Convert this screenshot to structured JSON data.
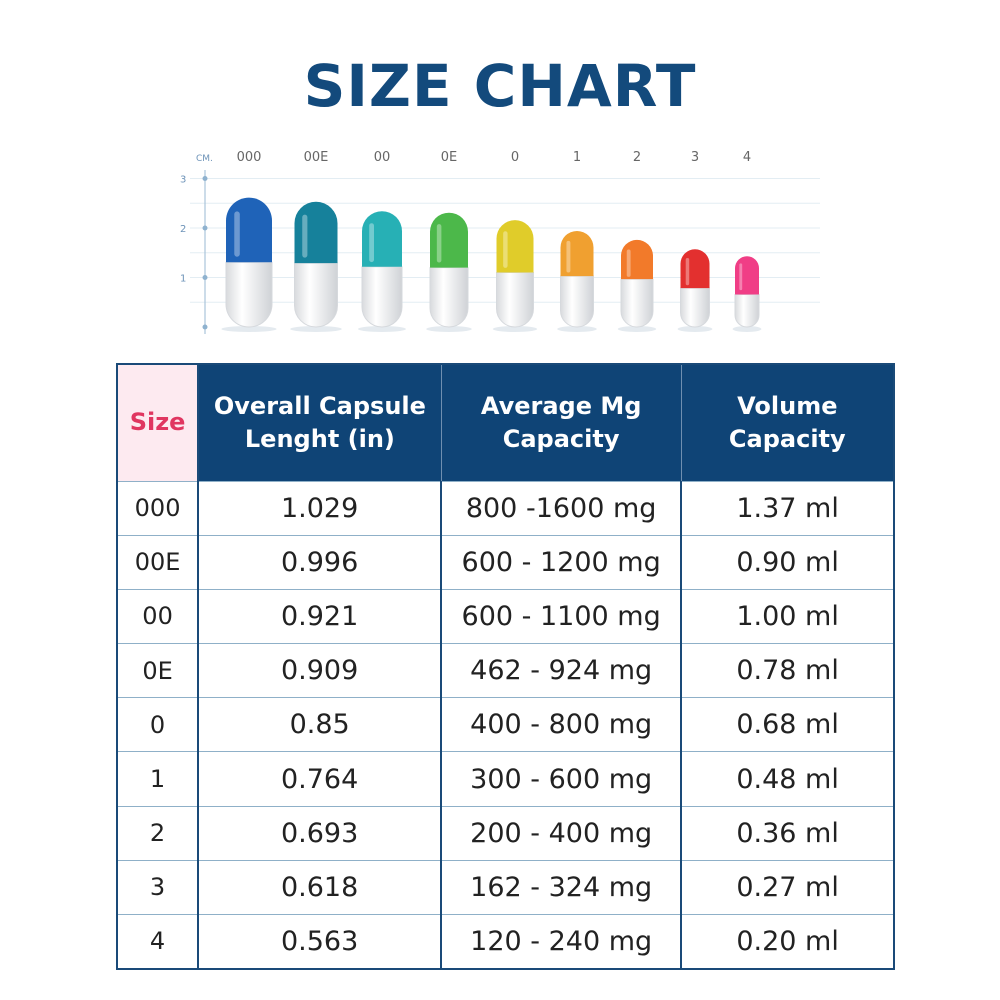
{
  "title": "SIZE CHART",
  "capsule_chart": {
    "unit_label": "CM.",
    "y_ticks": [
      "3",
      "2",
      "1"
    ],
    "capsules": [
      {
        "size": "000",
        "length_in": 1.029,
        "color": "#1f63b8"
      },
      {
        "size": "00E",
        "length_in": 0.996,
        "color": "#16819b"
      },
      {
        "size": "00",
        "length_in": 0.921,
        "color": "#27b0b5"
      },
      {
        "size": "0E",
        "length_in": 0.909,
        "color": "#4cb84a"
      },
      {
        "size": "0",
        "length_in": 0.85,
        "color": "#e0cc2a"
      },
      {
        "size": "1",
        "length_in": 0.764,
        "color": "#f0a030"
      },
      {
        "size": "2",
        "length_in": 0.693,
        "color": "#f27a2a"
      },
      {
        "size": "3",
        "length_in": 0.618,
        "color": "#e3302f"
      },
      {
        "size": "4",
        "length_in": 0.563,
        "color": "#f03e86"
      }
    ]
  },
  "table": {
    "headers": [
      "Size",
      "Overall Capsule Lenght (in)",
      "Average Mg Capacity",
      "Volume Capacity"
    ],
    "rows": [
      [
        "000",
        "1.029",
        "800 -1600 mg",
        "1.37 ml"
      ],
      [
        "00E",
        "0.996",
        "600 - 1200 mg",
        "0.90 ml"
      ],
      [
        "00",
        "0.921",
        "600 - 1100 mg",
        "1.00 ml"
      ],
      [
        "0E",
        "0.909",
        "462 - 924 mg",
        "0.78 ml"
      ],
      [
        "0",
        "0.85",
        "400 - 800 mg",
        "0.68 ml"
      ],
      [
        "1",
        "0.764",
        "300 - 600 mg",
        "0.48 ml"
      ],
      [
        "2",
        "0.693",
        "200 - 400 mg",
        "0.36 ml"
      ],
      [
        "3",
        "0.618",
        "162 - 324 mg",
        "0.27 ml"
      ],
      [
        "4",
        "0.563",
        "120 - 240 mg",
        "0.20 ml"
      ]
    ]
  }
}
